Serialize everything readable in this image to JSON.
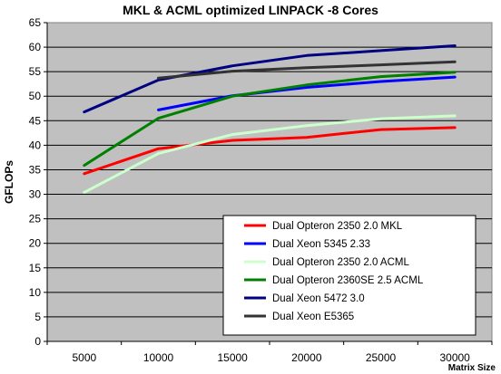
{
  "chart_data": {
    "type": "line",
    "title": "MKL & ACML optimized LINPACK -8 Cores",
    "xlabel": "Matrix Size",
    "ylabel": "GFLOPs",
    "x": [
      5000,
      10000,
      15000,
      20000,
      25000,
      30000
    ],
    "x_tick_labels": [
      "5000",
      "10000",
      "15000",
      "20000",
      "25000",
      "30000"
    ],
    "xlim": [
      2500,
      32500
    ],
    "ylim": [
      0,
      65
    ],
    "y_ticks": [
      0,
      5,
      10,
      15,
      20,
      25,
      30,
      35,
      40,
      45,
      50,
      55,
      60,
      65
    ],
    "y_tick_labels": [
      "0",
      "5",
      "10",
      "15",
      "20",
      "25",
      "30",
      "35",
      "40",
      "45",
      "50",
      "55",
      "60",
      "65"
    ],
    "grid": "horizontal",
    "plot_background": "#c0c0c0",
    "legend_position": "bottom-right",
    "series": [
      {
        "name": "Dual Opteron 2350 2.0  MKL",
        "color": "#ff0000",
        "x": [
          5000,
          10000,
          15000,
          20000,
          25000,
          30000
        ],
        "values": [
          34.2,
          39.3,
          41.0,
          41.6,
          43.2,
          43.6
        ]
      },
      {
        "name": "Dual Xeon 5345 2.33",
        "color": "#0000ff",
        "x": [
          10000,
          15000,
          20000,
          25000,
          30000
        ],
        "values": [
          47.2,
          50.1,
          51.8,
          53.0,
          53.9
        ]
      },
      {
        "name": "Dual Opteron 2350 2.0  ACML",
        "color": "#ccffcc",
        "x": [
          5000,
          10000,
          15000,
          20000,
          25000,
          30000
        ],
        "values": [
          30.4,
          38.3,
          42.2,
          44.0,
          45.4,
          46.0
        ]
      },
      {
        "name": "Dual Opteron 2360SE 2.5  ACML",
        "color": "#008000",
        "x": [
          5000,
          10000,
          15000,
          20000,
          25000,
          30000
        ],
        "values": [
          35.9,
          45.5,
          50.0,
          52.3,
          54.0,
          54.9
        ]
      },
      {
        "name": "Dual Xeon 5472 3.0",
        "color": "#000080",
        "x": [
          5000,
          10000,
          15000,
          20000,
          25000,
          30000
        ],
        "values": [
          46.8,
          53.3,
          56.2,
          58.3,
          59.3,
          60.3
        ]
      },
      {
        "name": "Dual Xeon E5365",
        "color": "#333333",
        "x": [
          10000,
          15000,
          20000,
          25000,
          30000
        ],
        "values": [
          53.7,
          55.1,
          55.8,
          56.4,
          57.0
        ]
      }
    ]
  }
}
